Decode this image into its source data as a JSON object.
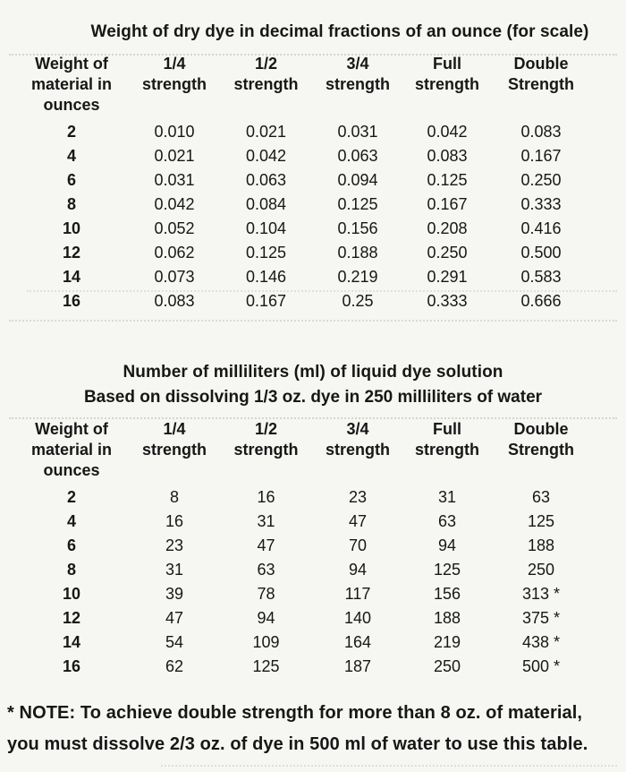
{
  "document": {
    "text_color": "#171717",
    "background_color": "#f6f6f2",
    "table_dry": {
      "title": "Weight of dry dye in decimal fractions of an ounce (for scale)",
      "headers": [
        "Weight of\nmaterial in\nounces",
        "1/4\nstrength",
        "1/2\nstrength",
        "3/4\nstrength",
        "Full\nstrength",
        "Double\nStrength"
      ],
      "rows": [
        [
          "2",
          "0.010",
          "0.021",
          "0.031",
          "0.042",
          "0.083"
        ],
        [
          "4",
          "0.021",
          "0.042",
          "0.063",
          "0.083",
          "0.167"
        ],
        [
          "6",
          "0.031",
          "0.063",
          "0.094",
          "0.125",
          "0.250"
        ],
        [
          "8",
          "0.042",
          "0.084",
          "0.125",
          "0.167",
          "0.333"
        ],
        [
          "10",
          "0.052",
          "0.104",
          "0.156",
          "0.208",
          "0.416"
        ],
        [
          "12",
          "0.062",
          "0.125",
          "0.188",
          "0.250",
          "0.500"
        ],
        [
          "14",
          "0.073",
          "0.146",
          "0.219",
          "0.291",
          "0.583"
        ],
        [
          "16",
          "0.083",
          "0.167",
          "0.25",
          "0.333",
          "0.666"
        ]
      ]
    },
    "table_liquid": {
      "title": "Number of milliliters (ml) of liquid dye solution",
      "subtitle": "Based on dissolving 1/3 oz. dye in 250 milliliters of water",
      "headers": [
        "Weight of\nmaterial in\nounces",
        "1/4\nstrength",
        "1/2\nstrength",
        "3/4\nstrength",
        "Full\nstrength",
        "Double\nStrength"
      ],
      "rows": [
        [
          "2",
          "8",
          "16",
          "23",
          "31",
          "63"
        ],
        [
          "4",
          "16",
          "31",
          "47",
          "63",
          "125"
        ],
        [
          "6",
          "23",
          "47",
          "70",
          "94",
          "188"
        ],
        [
          "8",
          "31",
          "63",
          "94",
          "125",
          "250"
        ],
        [
          "10",
          "39",
          "78",
          "117",
          "156",
          "313 *"
        ],
        [
          "12",
          "47",
          "94",
          "140",
          "188",
          "375 *"
        ],
        [
          "14",
          "54",
          "109",
          "164",
          "219",
          "438 *"
        ],
        [
          "16",
          "62",
          "125",
          "187",
          "250",
          "500 *"
        ]
      ]
    },
    "note": "* NOTE: To achieve double strength for more than 8 oz. of material,\nyou must dissolve 2/3 oz. of dye in 500 ml of water to use this table."
  }
}
